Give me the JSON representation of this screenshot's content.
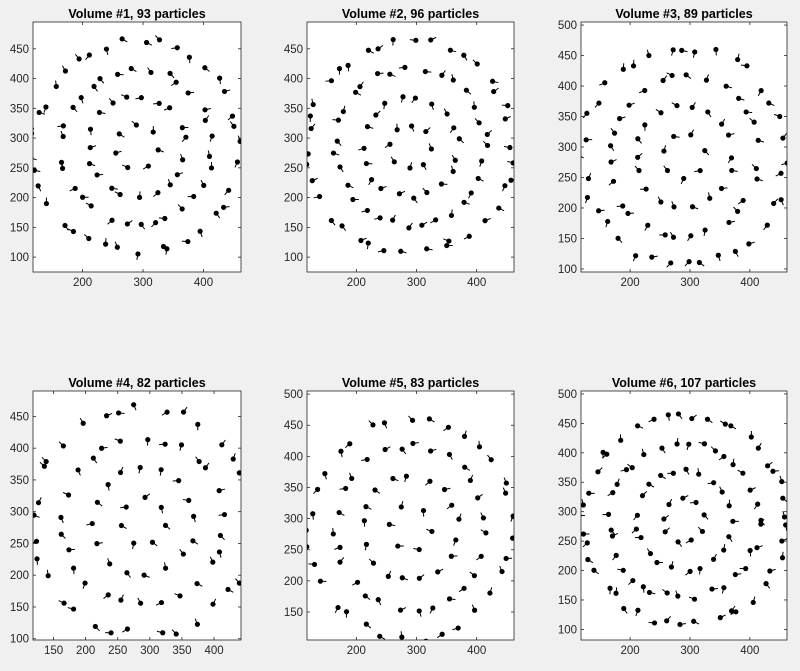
{
  "figure": {
    "background": "#f0f0f0",
    "marker_color": "#000000"
  },
  "chart_data": [
    {
      "type": "scatter",
      "title": "Volume #1, 93 particles",
      "xlim": [
        118,
        462
      ],
      "ylim": [
        75,
        495
      ],
      "xticks": [
        200,
        300,
        400
      ],
      "yticks": [
        100,
        150,
        200,
        250,
        300,
        350,
        400,
        450
      ],
      "grid": false,
      "seed": 11,
      "x": [],
      "y": []
    },
    {
      "type": "scatter",
      "title": "Volume #2, 96 particles",
      "xlim": [
        118,
        462
      ],
      "ylim": [
        75,
        495
      ],
      "xticks": [
        200,
        300,
        400
      ],
      "yticks": [
        100,
        150,
        200,
        250,
        300,
        350,
        400,
        450
      ],
      "grid": false,
      "seed": 23,
      "x": [],
      "y": []
    },
    {
      "type": "scatter",
      "title": "Volume #3, 89 particles",
      "xlim": [
        118,
        462
      ],
      "ylim": [
        95,
        505
      ],
      "xticks": [
        200,
        300,
        400
      ],
      "yticks": [
        100,
        150,
        200,
        250,
        300,
        350,
        400,
        450,
        500
      ],
      "grid": false,
      "seed": 37,
      "x": [],
      "y": []
    },
    {
      "type": "scatter",
      "title": "Volume #4, 82 particles",
      "xlim": [
        118,
        442
      ],
      "ylim": [
        98,
        490
      ],
      "xticks": [
        150,
        200,
        250,
        300,
        350,
        400
      ],
      "yticks": [
        100,
        150,
        200,
        250,
        300,
        350,
        400,
        450
      ],
      "grid": false,
      "seed": 41,
      "x": [],
      "y": []
    },
    {
      "type": "scatter",
      "title": "Volume #5, 83 particles",
      "xlim": [
        118,
        462
      ],
      "ylim": [
        105,
        505
      ],
      "xticks": [
        200,
        300,
        400
      ],
      "yticks": [
        150,
        200,
        250,
        300,
        350,
        400,
        450,
        500
      ],
      "grid": false,
      "seed": 53,
      "x": [],
      "y": []
    },
    {
      "type": "scatter",
      "title": "Volume #6, 107 particles",
      "xlim": [
        118,
        462
      ],
      "ylim": [
        82,
        505
      ],
      "xticks": [
        200,
        300,
        400
      ],
      "yticks": [
        100,
        150,
        200,
        250,
        300,
        350,
        400,
        450,
        500
      ],
      "grid": false,
      "seed": 67,
      "x": [],
      "y": []
    }
  ]
}
